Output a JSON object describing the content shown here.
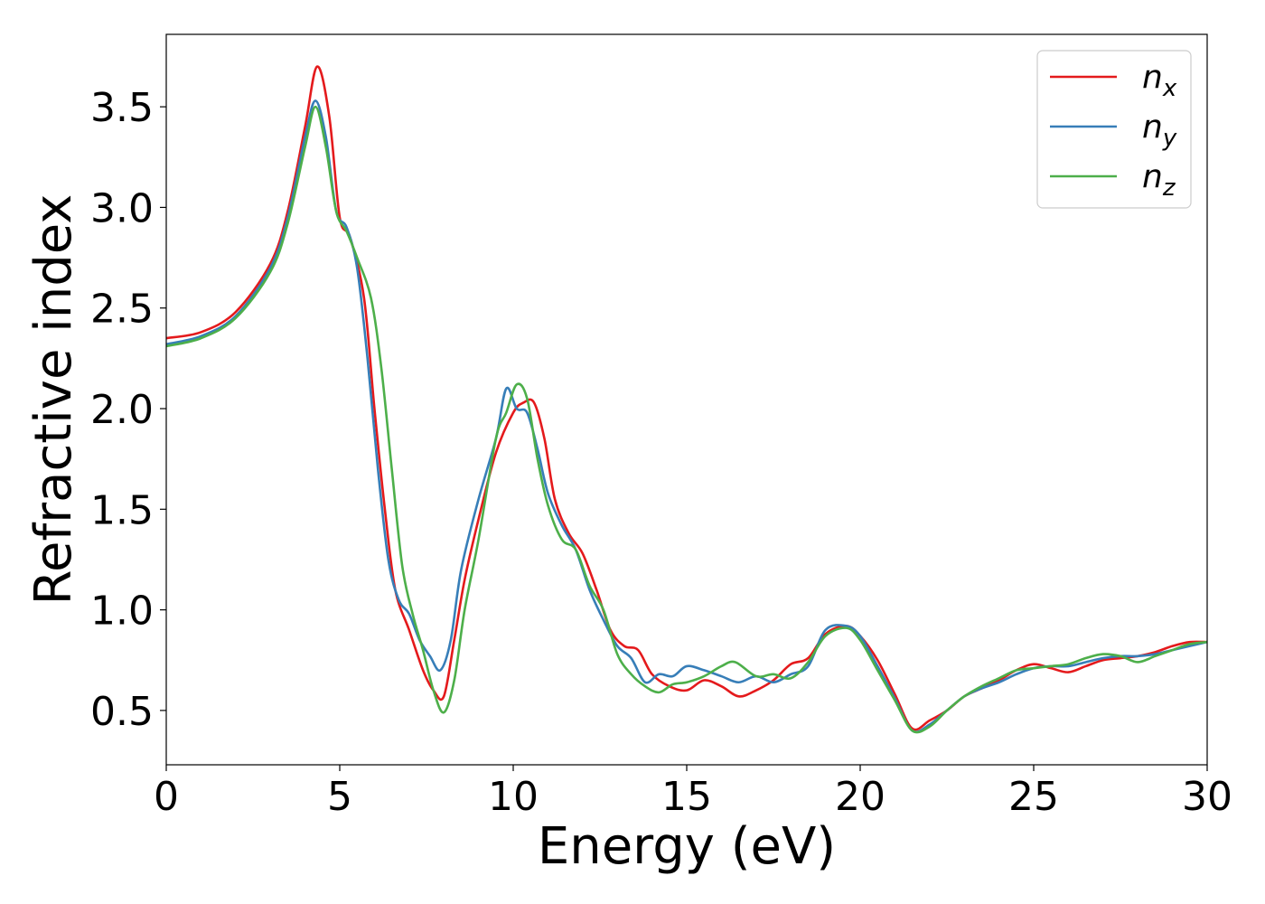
{
  "chart_data": {
    "type": "line",
    "xlabel": "Energy (eV)",
    "ylabel": "Refractive index",
    "xlim": [
      0,
      30
    ],
    "ylim": [
      0.23,
      3.86
    ],
    "xticks": [
      0,
      5,
      10,
      15,
      20,
      25,
      30
    ],
    "xtick_labels": [
      "0",
      "5",
      "10",
      "15",
      "20",
      "25",
      "30"
    ],
    "yticks": [
      0.5,
      1.0,
      1.5,
      2.0,
      2.5,
      3.0,
      3.5
    ],
    "ytick_labels": [
      "0.5",
      "1.0",
      "1.5",
      "2.0",
      "2.5",
      "3.0",
      "3.5"
    ],
    "grid": false,
    "legend_position": "top-right",
    "series": [
      {
        "name": "n_x",
        "legend_main": "n",
        "legend_sub": "x",
        "color": "#e41a1c",
        "points": [
          [
            0,
            2.35
          ],
          [
            1,
            2.38
          ],
          [
            2,
            2.48
          ],
          [
            3,
            2.72
          ],
          [
            3.5,
            2.98
          ],
          [
            4,
            3.4
          ],
          [
            4.35,
            3.7
          ],
          [
            4.7,
            3.45
          ],
          [
            5.0,
            2.95
          ],
          [
            5.3,
            2.85
          ],
          [
            5.7,
            2.55
          ],
          [
            6.0,
            2.0
          ],
          [
            6.3,
            1.5
          ],
          [
            6.6,
            1.1
          ],
          [
            7.0,
            0.9
          ],
          [
            7.4,
            0.7
          ],
          [
            7.7,
            0.6
          ],
          [
            8.0,
            0.57
          ],
          [
            8.3,
            0.85
          ],
          [
            8.6,
            1.15
          ],
          [
            9.0,
            1.45
          ],
          [
            9.5,
            1.78
          ],
          [
            10.0,
            1.98
          ],
          [
            10.3,
            2.03
          ],
          [
            10.6,
            2.03
          ],
          [
            10.9,
            1.85
          ],
          [
            11.2,
            1.55
          ],
          [
            11.6,
            1.38
          ],
          [
            12.0,
            1.28
          ],
          [
            12.4,
            1.1
          ],
          [
            12.8,
            0.9
          ],
          [
            13.2,
            0.82
          ],
          [
            13.6,
            0.8
          ],
          [
            14.0,
            0.68
          ],
          [
            14.5,
            0.62
          ],
          [
            15.0,
            0.6
          ],
          [
            15.5,
            0.65
          ],
          [
            16.0,
            0.62
          ],
          [
            16.5,
            0.57
          ],
          [
            17.0,
            0.6
          ],
          [
            17.5,
            0.65
          ],
          [
            18.0,
            0.73
          ],
          [
            18.5,
            0.76
          ],
          [
            19.0,
            0.88
          ],
          [
            19.6,
            0.92
          ],
          [
            20.0,
            0.87
          ],
          [
            20.5,
            0.75
          ],
          [
            21.0,
            0.58
          ],
          [
            21.5,
            0.41
          ],
          [
            22.0,
            0.45
          ],
          [
            22.5,
            0.5
          ],
          [
            23.0,
            0.57
          ],
          [
            23.5,
            0.61
          ],
          [
            24.0,
            0.65
          ],
          [
            24.5,
            0.7
          ],
          [
            25.0,
            0.73
          ],
          [
            25.5,
            0.71
          ],
          [
            26.0,
            0.69
          ],
          [
            26.5,
            0.72
          ],
          [
            27.0,
            0.75
          ],
          [
            27.5,
            0.76
          ],
          [
            28.0,
            0.77
          ],
          [
            28.5,
            0.79
          ],
          [
            29.0,
            0.82
          ],
          [
            29.5,
            0.84
          ],
          [
            30.0,
            0.84
          ]
        ]
      },
      {
        "name": "n_y",
        "legend_main": "n",
        "legend_sub": "y",
        "color": "#377eb8",
        "points": [
          [
            0,
            2.32
          ],
          [
            1,
            2.36
          ],
          [
            2,
            2.46
          ],
          [
            3,
            2.7
          ],
          [
            3.5,
            2.95
          ],
          [
            4,
            3.35
          ],
          [
            4.3,
            3.53
          ],
          [
            4.6,
            3.35
          ],
          [
            4.9,
            2.98
          ],
          [
            5.2,
            2.9
          ],
          [
            5.5,
            2.7
          ],
          [
            5.8,
            2.25
          ],
          [
            6.1,
            1.7
          ],
          [
            6.4,
            1.25
          ],
          [
            6.7,
            1.05
          ],
          [
            7.0,
            0.98
          ],
          [
            7.3,
            0.85
          ],
          [
            7.6,
            0.77
          ],
          [
            7.9,
            0.7
          ],
          [
            8.2,
            0.85
          ],
          [
            8.5,
            1.2
          ],
          [
            9.0,
            1.55
          ],
          [
            9.5,
            1.85
          ],
          [
            9.8,
            2.1
          ],
          [
            10.1,
            2.0
          ],
          [
            10.4,
            1.98
          ],
          [
            10.7,
            1.8
          ],
          [
            11.0,
            1.58
          ],
          [
            11.4,
            1.42
          ],
          [
            11.8,
            1.3
          ],
          [
            12.2,
            1.1
          ],
          [
            12.6,
            0.95
          ],
          [
            13.0,
            0.82
          ],
          [
            13.4,
            0.76
          ],
          [
            13.8,
            0.64
          ],
          [
            14.2,
            0.68
          ],
          [
            14.6,
            0.67
          ],
          [
            15.0,
            0.72
          ],
          [
            15.5,
            0.7
          ],
          [
            16.0,
            0.67
          ],
          [
            16.5,
            0.64
          ],
          [
            17.0,
            0.67
          ],
          [
            17.5,
            0.64
          ],
          [
            18.0,
            0.68
          ],
          [
            18.5,
            0.72
          ],
          [
            19.0,
            0.9
          ],
          [
            19.6,
            0.92
          ],
          [
            20.0,
            0.87
          ],
          [
            20.5,
            0.72
          ],
          [
            21.0,
            0.56
          ],
          [
            21.5,
            0.4
          ],
          [
            22.0,
            0.43
          ],
          [
            22.5,
            0.5
          ],
          [
            23.0,
            0.57
          ],
          [
            23.5,
            0.61
          ],
          [
            24.0,
            0.64
          ],
          [
            24.5,
            0.68
          ],
          [
            25.0,
            0.71
          ],
          [
            25.5,
            0.72
          ],
          [
            26.0,
            0.72
          ],
          [
            26.5,
            0.74
          ],
          [
            27.0,
            0.76
          ],
          [
            27.5,
            0.77
          ],
          [
            28.0,
            0.77
          ],
          [
            28.5,
            0.78
          ],
          [
            29.0,
            0.8
          ],
          [
            29.5,
            0.82
          ],
          [
            30.0,
            0.84
          ]
        ]
      },
      {
        "name": "n_z",
        "legend_main": "n",
        "legend_sub": "z",
        "color": "#4daf4a",
        "points": [
          [
            0,
            2.31
          ],
          [
            1,
            2.35
          ],
          [
            2,
            2.45
          ],
          [
            3,
            2.68
          ],
          [
            3.5,
            2.92
          ],
          [
            4,
            3.3
          ],
          [
            4.3,
            3.5
          ],
          [
            4.6,
            3.3
          ],
          [
            4.9,
            2.98
          ],
          [
            5.2,
            2.88
          ],
          [
            5.5,
            2.75
          ],
          [
            5.9,
            2.55
          ],
          [
            6.2,
            2.2
          ],
          [
            6.5,
            1.7
          ],
          [
            6.8,
            1.22
          ],
          [
            7.1,
            0.98
          ],
          [
            7.4,
            0.8
          ],
          [
            7.7,
            0.6
          ],
          [
            8.0,
            0.49
          ],
          [
            8.3,
            0.65
          ],
          [
            8.6,
            1.0
          ],
          [
            9.0,
            1.35
          ],
          [
            9.5,
            1.85
          ],
          [
            9.8,
            1.98
          ],
          [
            10.1,
            2.12
          ],
          [
            10.4,
            2.05
          ],
          [
            10.7,
            1.75
          ],
          [
            11.0,
            1.52
          ],
          [
            11.4,
            1.35
          ],
          [
            11.8,
            1.3
          ],
          [
            12.2,
            1.12
          ],
          [
            12.6,
            1.0
          ],
          [
            13.0,
            0.78
          ],
          [
            13.4,
            0.68
          ],
          [
            13.8,
            0.62
          ],
          [
            14.2,
            0.59
          ],
          [
            14.6,
            0.63
          ],
          [
            15.0,
            0.64
          ],
          [
            15.5,
            0.67
          ],
          [
            16.0,
            0.72
          ],
          [
            16.4,
            0.74
          ],
          [
            17.0,
            0.67
          ],
          [
            17.5,
            0.68
          ],
          [
            18.0,
            0.66
          ],
          [
            18.5,
            0.74
          ],
          [
            19.0,
            0.87
          ],
          [
            19.6,
            0.91
          ],
          [
            20.0,
            0.85
          ],
          [
            20.5,
            0.7
          ],
          [
            21.0,
            0.55
          ],
          [
            21.5,
            0.4
          ],
          [
            22.0,
            0.42
          ],
          [
            22.5,
            0.5
          ],
          [
            23.0,
            0.57
          ],
          [
            23.5,
            0.62
          ],
          [
            24.0,
            0.66
          ],
          [
            24.5,
            0.7
          ],
          [
            25.0,
            0.71
          ],
          [
            25.5,
            0.72
          ],
          [
            26.0,
            0.73
          ],
          [
            26.5,
            0.76
          ],
          [
            27.0,
            0.78
          ],
          [
            27.5,
            0.77
          ],
          [
            28.0,
            0.74
          ],
          [
            28.5,
            0.77
          ],
          [
            29.0,
            0.8
          ],
          [
            29.5,
            0.83
          ],
          [
            30.0,
            0.84
          ]
        ]
      }
    ]
  }
}
